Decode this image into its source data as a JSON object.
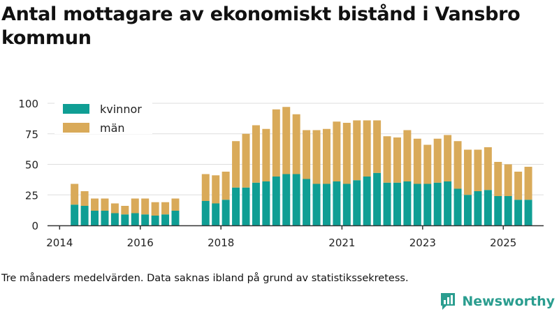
{
  "title": "Antal mottagare av ekonomiskt bistånd i Vansbro kommun",
  "footnote": "Tre månaders medelvärden. Data saknas ibland på grund av statistikssekretess.",
  "brand": {
    "name": "Newsworthy",
    "logo_icon": "newsworthy-logo-icon"
  },
  "colors": {
    "kvinnor": "#0f9e94",
    "man": "#d9aa59",
    "grid": "#dddddd",
    "axis": "#333333"
  },
  "chart_data": {
    "type": "bar",
    "stacked": true,
    "ylim": [
      0,
      100
    ],
    "yticks": [
      0,
      25,
      50,
      75,
      100
    ],
    "xlim": [
      2013.7,
      2026.0
    ],
    "xticks": [
      2014,
      2016,
      2018,
      2021,
      2023,
      2025
    ],
    "grid": true,
    "legend_position": "top-left",
    "series": [
      {
        "name": "kvinnor",
        "color": "#0f9e94",
        "points": [
          [
            2014.37,
            17
          ],
          [
            2014.62,
            16
          ],
          [
            2014.87,
            12
          ],
          [
            2015.12,
            12
          ],
          [
            2015.37,
            10
          ],
          [
            2015.62,
            9
          ],
          [
            2015.87,
            10
          ],
          [
            2016.12,
            9
          ],
          [
            2016.37,
            8
          ],
          [
            2016.62,
            9
          ],
          [
            2016.87,
            12
          ],
          [
            2017.62,
            20
          ],
          [
            2017.87,
            18
          ],
          [
            2018.12,
            21
          ],
          [
            2018.37,
            31
          ],
          [
            2018.62,
            31
          ],
          [
            2018.87,
            35
          ],
          [
            2019.12,
            36
          ],
          [
            2019.37,
            40
          ],
          [
            2019.62,
            42
          ],
          [
            2019.87,
            42
          ],
          [
            2020.12,
            38
          ],
          [
            2020.37,
            34
          ],
          [
            2020.62,
            34
          ],
          [
            2020.87,
            36
          ],
          [
            2021.12,
            34
          ],
          [
            2021.37,
            37
          ],
          [
            2021.62,
            40
          ],
          [
            2021.87,
            43
          ],
          [
            2022.12,
            35
          ],
          [
            2022.37,
            35
          ],
          [
            2022.62,
            36
          ],
          [
            2022.87,
            34
          ],
          [
            2023.12,
            34
          ],
          [
            2023.37,
            35
          ],
          [
            2023.62,
            36
          ],
          [
            2023.87,
            30
          ],
          [
            2024.12,
            25
          ],
          [
            2024.37,
            28
          ],
          [
            2024.62,
            29
          ],
          [
            2024.87,
            24
          ],
          [
            2025.12,
            24
          ],
          [
            2025.37,
            21
          ],
          [
            2025.62,
            21
          ]
        ]
      },
      {
        "name": "män",
        "color": "#d9aa59",
        "points": [
          [
            2014.37,
            17
          ],
          [
            2014.62,
            12
          ],
          [
            2014.87,
            10
          ],
          [
            2015.12,
            10
          ],
          [
            2015.37,
            8
          ],
          [
            2015.62,
            7
          ],
          [
            2015.87,
            12
          ],
          [
            2016.12,
            13
          ],
          [
            2016.37,
            11
          ],
          [
            2016.62,
            10
          ],
          [
            2016.87,
            10
          ],
          [
            2017.62,
            22
          ],
          [
            2017.87,
            23
          ],
          [
            2018.12,
            23
          ],
          [
            2018.37,
            38
          ],
          [
            2018.62,
            44
          ],
          [
            2018.87,
            47
          ],
          [
            2019.12,
            43
          ],
          [
            2019.37,
            55
          ],
          [
            2019.62,
            55
          ],
          [
            2019.87,
            49
          ],
          [
            2020.12,
            40
          ],
          [
            2020.37,
            44
          ],
          [
            2020.62,
            45
          ],
          [
            2020.87,
            49
          ],
          [
            2021.12,
            50
          ],
          [
            2021.37,
            49
          ],
          [
            2021.62,
            46
          ],
          [
            2021.87,
            43
          ],
          [
            2022.12,
            38
          ],
          [
            2022.37,
            37
          ],
          [
            2022.62,
            42
          ],
          [
            2022.87,
            37
          ],
          [
            2023.12,
            32
          ],
          [
            2023.37,
            36
          ],
          [
            2023.62,
            38
          ],
          [
            2023.87,
            39
          ],
          [
            2024.12,
            37
          ],
          [
            2024.37,
            34
          ],
          [
            2024.62,
            35
          ],
          [
            2024.87,
            28
          ],
          [
            2025.12,
            26
          ],
          [
            2025.37,
            23
          ],
          [
            2025.62,
            27
          ]
        ]
      }
    ]
  }
}
